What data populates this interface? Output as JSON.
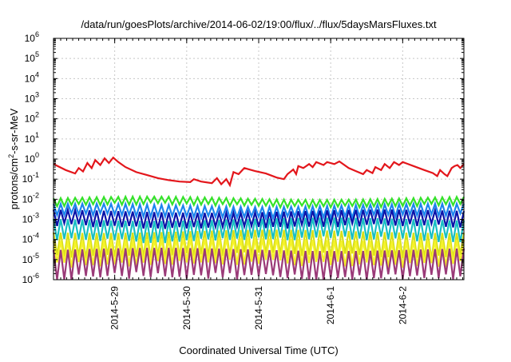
{
  "chart_data": {
    "type": "line",
    "title": "/data/run/goesPlots/archive/2014-06-02/19:00/flux/../flux/5daysMarsFluxes.txt",
    "xlabel": "Coordinated Universal Time (UTC)",
    "ylabel": {
      "pre": "protons/cm",
      "sup": "2",
      "post": "-s-sr-MeV"
    },
    "xlim": [
      -0.85,
      4.85
    ],
    "ylim_exp": [
      -6,
      6
    ],
    "y_scale": "log",
    "y_tick_exponents": [
      -6,
      -5,
      -4,
      -3,
      -2,
      -1,
      0,
      1,
      2,
      3,
      4,
      5,
      6
    ],
    "x_ticks": [
      {
        "pos": 0,
        "label": "2014-5-29"
      },
      {
        "pos": 1,
        "label": "2014-5-30"
      },
      {
        "pos": 2,
        "label": "2014-5-31"
      },
      {
        "pos": 3,
        "label": "2014-6-1"
      },
      {
        "pos": 4,
        "label": "2014-6-2"
      }
    ],
    "grid": true,
    "series": [
      {
        "color": "#e3161b",
        "width": 2.2,
        "points": [
          [
            -0.85,
            -0.25
          ],
          [
            -0.68,
            -0.55
          ],
          [
            -0.55,
            -0.72
          ],
          [
            -0.5,
            -0.45
          ],
          [
            -0.44,
            -0.62
          ],
          [
            -0.38,
            -0.2
          ],
          [
            -0.32,
            -0.45
          ],
          [
            -0.27,
            -0.05
          ],
          [
            -0.2,
            -0.3
          ],
          [
            -0.14,
            0.03
          ],
          [
            -0.08,
            -0.2
          ],
          [
            -0.02,
            0.07
          ],
          [
            0.05,
            -0.15
          ],
          [
            0.15,
            -0.4
          ],
          [
            0.3,
            -0.65
          ],
          [
            0.45,
            -0.8
          ],
          [
            0.6,
            -0.95
          ],
          [
            0.75,
            -1.05
          ],
          [
            0.9,
            -1.12
          ],
          [
            1.05,
            -1.15
          ],
          [
            1.1,
            -1.0
          ],
          [
            1.2,
            -1.12
          ],
          [
            1.35,
            -1.2
          ],
          [
            1.42,
            -0.95
          ],
          [
            1.48,
            -1.25
          ],
          [
            1.55,
            -1.0
          ],
          [
            1.6,
            -1.3
          ],
          [
            1.65,
            -0.65
          ],
          [
            1.72,
            -0.75
          ],
          [
            1.8,
            -0.45
          ],
          [
            1.85,
            -0.5
          ],
          [
            1.95,
            -0.6
          ],
          [
            2.1,
            -0.72
          ],
          [
            2.25,
            -0.92
          ],
          [
            2.35,
            -1.0
          ],
          [
            2.4,
            -0.75
          ],
          [
            2.48,
            -0.52
          ],
          [
            2.52,
            -0.75
          ],
          [
            2.55,
            -0.35
          ],
          [
            2.62,
            -0.45
          ],
          [
            2.7,
            -0.25
          ],
          [
            2.75,
            -0.4
          ],
          [
            2.8,
            -0.15
          ],
          [
            2.9,
            -0.3
          ],
          [
            2.95,
            -0.15
          ],
          [
            3.05,
            -0.25
          ],
          [
            3.12,
            -0.12
          ],
          [
            3.25,
            -0.45
          ],
          [
            3.35,
            -0.6
          ],
          [
            3.45,
            -0.75
          ],
          [
            3.5,
            -0.55
          ],
          [
            3.58,
            -0.7
          ],
          [
            3.62,
            -0.4
          ],
          [
            3.7,
            -0.55
          ],
          [
            3.75,
            -0.25
          ],
          [
            3.82,
            -0.45
          ],
          [
            3.88,
            -0.15
          ],
          [
            3.95,
            -0.3
          ],
          [
            4.0,
            -0.15
          ],
          [
            4.15,
            -0.35
          ],
          [
            4.3,
            -0.55
          ],
          [
            4.42,
            -0.7
          ],
          [
            4.48,
            -0.85
          ],
          [
            4.52,
            -0.55
          ],
          [
            4.58,
            -0.75
          ],
          [
            4.62,
            -0.85
          ],
          [
            4.68,
            -0.45
          ],
          [
            4.72,
            -0.35
          ],
          [
            4.76,
            -0.3
          ],
          [
            4.8,
            -0.45
          ],
          [
            4.85,
            -0.25
          ]
        ]
      },
      {
        "color": "#35e22a",
        "width": 2.2,
        "base": -1.95,
        "swing": 0.35,
        "dip": 0.12,
        "step": 0.1
      },
      {
        "color": "#1c86ee",
        "width": 2.2,
        "base": -2.3,
        "swing": 0.55,
        "dip": 0.15,
        "step": 0.1
      },
      {
        "color": "#0b13a8",
        "width": 2.2,
        "base": -2.6,
        "swing": 0.75,
        "dip": 0.18,
        "step": 0.1
      },
      {
        "color": "#18bfc4",
        "width": 2.2,
        "base": -3.0,
        "swing": 1.0,
        "dip": 0.2,
        "step": 0.1
      },
      {
        "color": "#d8e018",
        "width": 2.2,
        "base": -3.6,
        "swing": 1.2,
        "dip": 0.25,
        "step": 0.1
      },
      {
        "color": "#f5f22a",
        "width": 2.2,
        "base": -4.0,
        "swing": 1.2,
        "dip": 0.3,
        "step": 0.1
      },
      {
        "color": "#9a3a78",
        "width": 2.2,
        "base": -4.5,
        "swing": 1.35,
        "dip": 0.35,
        "step": 0.1
      }
    ]
  }
}
